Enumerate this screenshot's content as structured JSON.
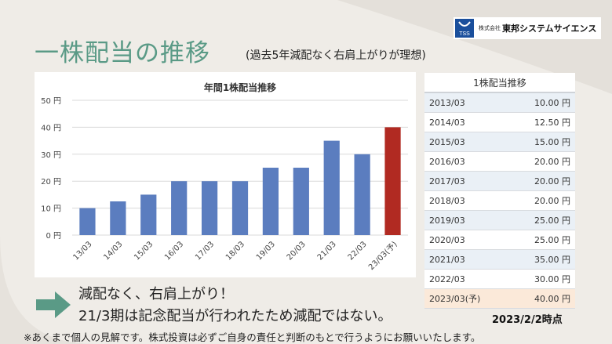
{
  "header": {
    "title": "一株配当の推移",
    "subtitle": "(過去5年減配なく右肩上がりが理想)"
  },
  "logo": {
    "mark_text": "TSS",
    "company_prefix": "株式会社",
    "company_name": "東邦システムサイエンス"
  },
  "colors": {
    "title": "#5a9a86",
    "bar": "#5b7dbf",
    "bar_forecast": "#b12a22",
    "arrow": "#5a9a86"
  },
  "chart_data": {
    "type": "bar",
    "title": "年間1株配当推移",
    "categories": [
      "13/03",
      "14/03",
      "15/03",
      "16/03",
      "17/03",
      "18/03",
      "19/03",
      "20/03",
      "21/03",
      "22/03",
      "23/03(予)"
    ],
    "values": [
      10,
      12.5,
      15,
      20,
      20,
      20,
      25,
      25,
      35,
      30,
      40
    ],
    "highlight_index": 10,
    "ylim": [
      0,
      50
    ],
    "yticks": [
      0,
      10,
      20,
      30,
      40,
      50
    ],
    "ytick_labels": [
      "0 円",
      "10 円",
      "20 円",
      "30 円",
      "40 円",
      "50 円"
    ],
    "grid": true,
    "xlabel": "",
    "ylabel": ""
  },
  "table": {
    "title": "1株配当推移",
    "rows": [
      {
        "period": "2013/03",
        "value": "10.00 円"
      },
      {
        "period": "2014/03",
        "value": "12.50 円"
      },
      {
        "period": "2015/03",
        "value": "15.00 円"
      },
      {
        "period": "2016/03",
        "value": "20.00 円"
      },
      {
        "period": "2017/03",
        "value": "20.00 円"
      },
      {
        "period": "2018/03",
        "value": "20.00 円"
      },
      {
        "period": "2019/03",
        "value": "25.00 円"
      },
      {
        "period": "2020/03",
        "value": "25.00 円"
      },
      {
        "period": "2021/03",
        "value": "35.00 円"
      },
      {
        "period": "2022/03",
        "value": "30.00 円"
      },
      {
        "period": "2023/03(予)",
        "value": "40.00 円"
      }
    ]
  },
  "notes": {
    "line1": "減配なく、右肩上がり！",
    "line2": "21/3期は記念配当が行われたため減配ではない。",
    "as_of": "2023/2/2時点",
    "footnote": "※あくまで個人の見解です。株式投資は必ずご自身の責任と判断のもとで行うようにお願いいたします。"
  }
}
